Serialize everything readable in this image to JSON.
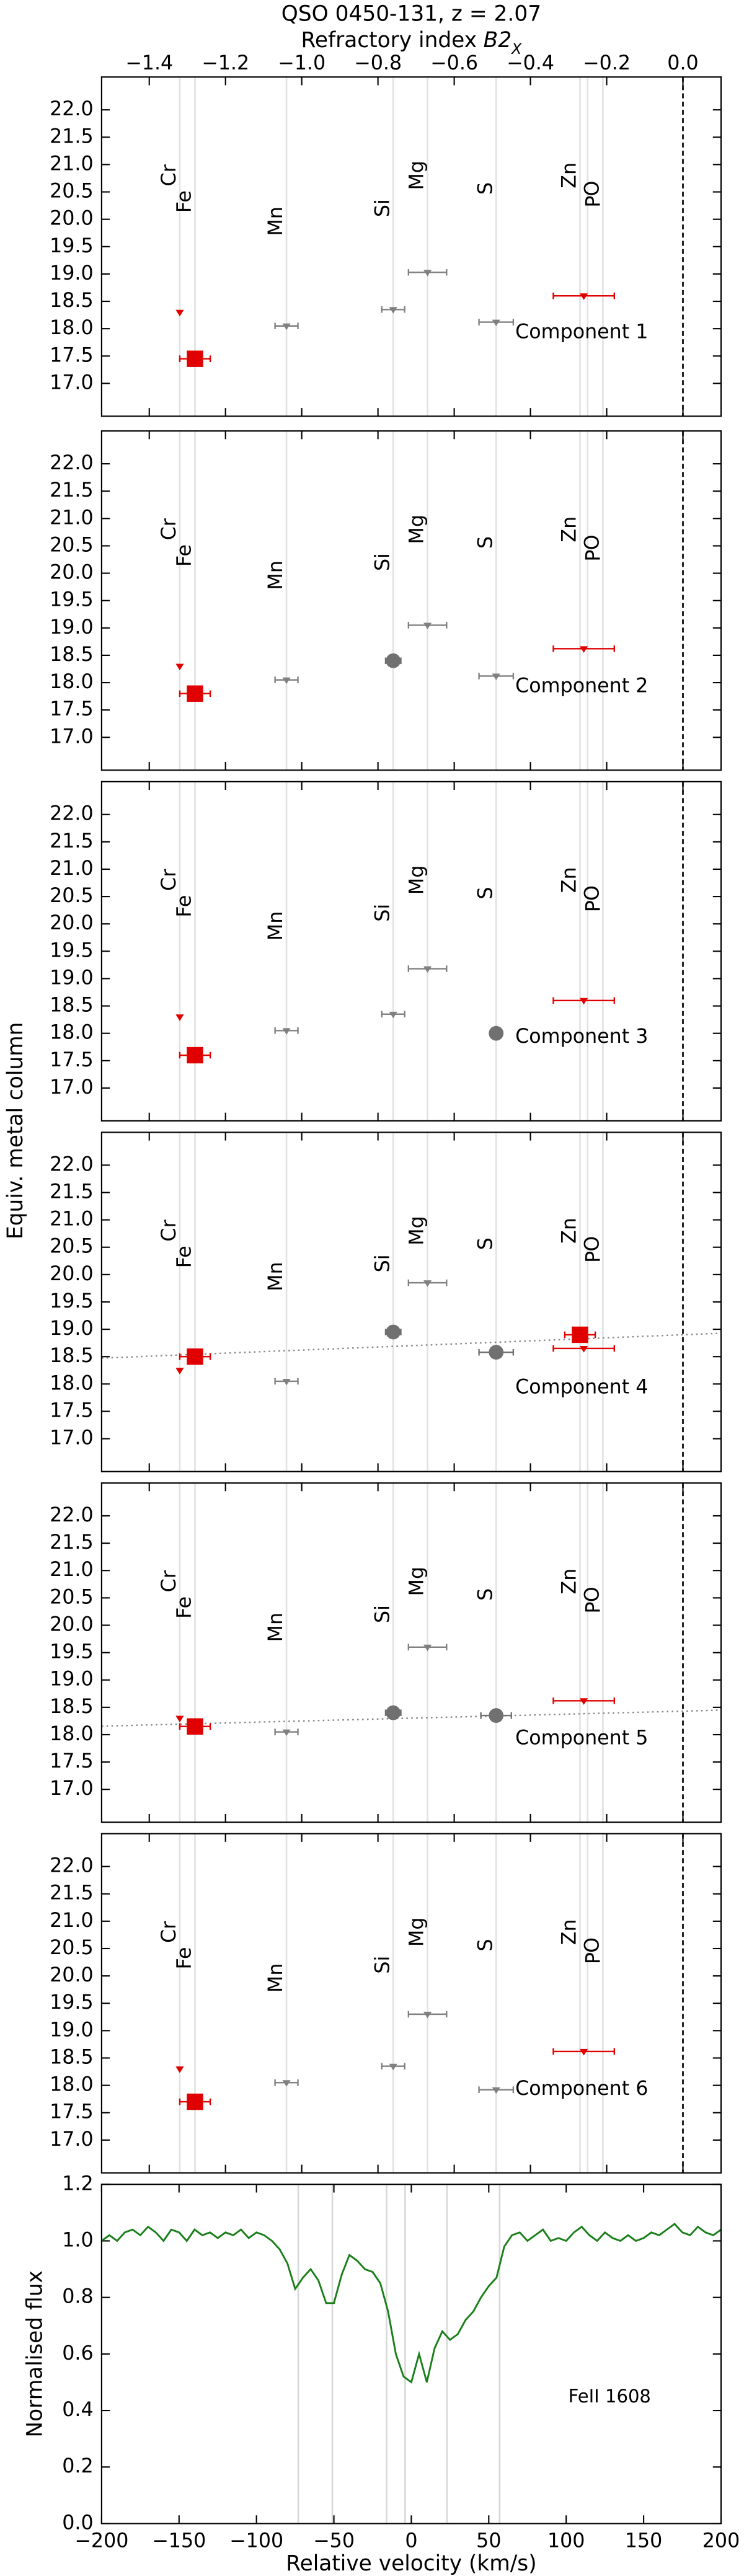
{
  "title": "QSO 0450-131, z = 2.07",
  "ylabel": "Equiv. metal column",
  "refractory_axis": {
    "label": "Refractory index",
    "symbol": "B2",
    "subscript": "X",
    "xlim": [
      -1.525,
      0.1
    ],
    "xticks": [
      {
        "value": -1.4,
        "label": "−1.4"
      },
      {
        "value": -1.2,
        "label": "−1.2"
      },
      {
        "value": -1.0,
        "label": "−1.0"
      },
      {
        "value": -0.8,
        "label": "−0.8"
      },
      {
        "value": -0.6,
        "label": "−0.6"
      },
      {
        "value": -0.4,
        "label": "−0.4"
      },
      {
        "value": -0.2,
        "label": "−0.2"
      },
      {
        "value": 0,
        "label": "0.0"
      }
    ],
    "refline": 0
  },
  "elements": {
    "labels": [
      "Cr",
      "Fe",
      "Mn",
      "Si",
      "Mg",
      "S",
      "Zn",
      "P",
      "O"
    ],
    "x": [
      -1.32,
      -1.28,
      -1.04,
      -0.76,
      -0.67,
      -0.49,
      -0.27,
      -0.25,
      -0.21
    ],
    "colors": [
      "#e00000",
      "#e00000",
      "#808080",
      "#808080",
      "#808080",
      "#808080",
      "#e00000",
      "#e00000",
      "#808080"
    ]
  },
  "chart_data": [
    {
      "type": "scatter",
      "label": "Component 1",
      "ylim": [
        16.4,
        22.6
      ],
      "yticks": [
        {
          "value": 17,
          "label": "17.0"
        },
        17.5,
        {
          "value": 18,
          "label": "18.0"
        },
        18.5,
        {
          "value": 19,
          "label": "19.0"
        },
        19.5,
        {
          "value": 20,
          "label": "20.0"
        },
        20.5,
        {
          "value": 21,
          "label": "21.0"
        },
        21.5,
        {
          "value": 22,
          "label": "22.0"
        }
      ],
      "points": {
        "x": [
          -1.32,
          -1.28,
          -1.04,
          -0.76,
          -0.67,
          -0.49,
          -0.26
        ],
        "values": [
          18.3,
          17.45,
          18.05,
          18.35,
          19.03,
          18.12,
          18.6
        ],
        "xerr": [
          0,
          0.04,
          0.03,
          0.03,
          0.05,
          0.045,
          0.08
        ],
        "markers": [
          "limit",
          "square",
          "limit",
          "limit",
          "limit",
          "limit",
          "limit"
        ],
        "colors": [
          "#e00000",
          "#e00000",
          "#808080",
          "#808080",
          "#808080",
          "#808080",
          "#e00000"
        ]
      }
    },
    {
      "type": "scatter",
      "label": "Component 2",
      "ylim": [
        16.4,
        22.6
      ],
      "yticks": [
        {
          "value": 17,
          "label": "17.0"
        },
        17.5,
        {
          "value": 18,
          "label": "18.0"
        },
        18.5,
        {
          "value": 19,
          "label": "19.0"
        },
        19.5,
        {
          "value": 20,
          "label": "20.0"
        },
        20.5,
        {
          "value": 21,
          "label": "21.0"
        },
        21.5,
        {
          "value": 22,
          "label": "22.0"
        }
      ],
      "points": {
        "x": [
          -1.32,
          -1.28,
          -1.04,
          -0.76,
          -0.67,
          -0.49,
          -0.26
        ],
        "values": [
          18.3,
          17.8,
          18.05,
          18.4,
          19.05,
          18.12,
          18.62
        ],
        "xerr": [
          0,
          0.04,
          0.03,
          0.02,
          0.05,
          0.045,
          0.08
        ],
        "markers": [
          "limit",
          "square",
          "limit",
          "circle",
          "limit",
          "limit",
          "limit"
        ],
        "colors": [
          "#e00000",
          "#e00000",
          "#808080",
          "#707070",
          "#808080",
          "#808080",
          "#e00000"
        ]
      }
    },
    {
      "type": "scatter",
      "label": "Component 3",
      "ylim": [
        16.4,
        22.6
      ],
      "yticks": [
        {
          "value": 17,
          "label": "17.0"
        },
        17.5,
        {
          "value": 18,
          "label": "18.0"
        },
        18.5,
        {
          "value": 19,
          "label": "19.0"
        },
        19.5,
        {
          "value": 20,
          "label": "20.0"
        },
        20.5,
        {
          "value": 21,
          "label": "21.0"
        },
        21.5,
        {
          "value": 22,
          "label": "22.0"
        }
      ],
      "points": {
        "x": [
          -1.32,
          -1.28,
          -1.04,
          -0.76,
          -0.67,
          -0.49,
          -0.26
        ],
        "values": [
          18.3,
          17.6,
          18.05,
          18.35,
          19.18,
          18.0,
          18.6
        ],
        "xerr": [
          0,
          0.04,
          0.03,
          0.03,
          0.05,
          0,
          0.08
        ],
        "markers": [
          "limit",
          "square",
          "limit",
          "limit",
          "limit",
          "circle",
          "limit"
        ],
        "colors": [
          "#e00000",
          "#e00000",
          "#808080",
          "#808080",
          "#808080",
          "#707070",
          "#e00000"
        ]
      }
    },
    {
      "type": "scatter",
      "label": "Component 4",
      "ylim": [
        16.4,
        22.6
      ],
      "yticks": [
        {
          "value": 17,
          "label": "17.0"
        },
        17.5,
        {
          "value": 18,
          "label": "18.0"
        },
        18.5,
        {
          "value": 19,
          "label": "19.0"
        },
        19.5,
        {
          "value": 20,
          "label": "20.0"
        },
        20.5,
        {
          "value": 21,
          "label": "21.0"
        },
        21.5,
        {
          "value": 22,
          "label": "22.0"
        }
      ],
      "points": {
        "x": [
          -1.32,
          -1.28,
          -1.04,
          -0.76,
          -0.67,
          -0.49,
          -0.26,
          -0.27
        ],
        "values": [
          18.25,
          18.5,
          18.05,
          18.95,
          19.85,
          18.58,
          18.65,
          18.9
        ],
        "xerr": [
          0,
          0.04,
          0.03,
          0.02,
          0.05,
          0.045,
          0.08,
          0.04
        ],
        "markers": [
          "limit",
          "square",
          "limit",
          "circle",
          "limit",
          "circle",
          "limit",
          "square"
        ],
        "colors": [
          "#e00000",
          "#e00000",
          "#808080",
          "#707070",
          "#808080",
          "#707070",
          "#e00000",
          "#e00000"
        ]
      },
      "fit": {
        "slope": 0.28,
        "intercept": 18.9
      }
    },
    {
      "type": "scatter",
      "label": "Component 5",
      "ylim": [
        16.4,
        22.6
      ],
      "yticks": [
        {
          "value": 17,
          "label": "17.0"
        },
        17.5,
        {
          "value": 18,
          "label": "18.0"
        },
        18.5,
        {
          "value": 19,
          "label": "19.0"
        },
        19.5,
        {
          "value": 20,
          "label": "20.0"
        },
        20.5,
        {
          "value": 21,
          "label": "21.0"
        },
        21.5,
        {
          "value": 22,
          "label": "22.0"
        }
      ],
      "points": {
        "x": [
          -1.32,
          -1.28,
          -1.04,
          -0.76,
          -0.67,
          -0.49,
          -0.26
        ],
        "values": [
          18.3,
          18.15,
          18.05,
          18.4,
          19.6,
          18.35,
          18.62
        ],
        "xerr": [
          0,
          0.04,
          0.03,
          0.02,
          0.05,
          0.04,
          0.08
        ],
        "markers": [
          "limit",
          "square",
          "limit",
          "circle",
          "limit",
          "circle",
          "limit"
        ],
        "colors": [
          "#e00000",
          "#e00000",
          "#808080",
          "#707070",
          "#808080",
          "#707070",
          "#e00000"
        ]
      },
      "fit": {
        "slope": 0.18,
        "intercept": 18.43
      }
    },
    {
      "type": "scatter",
      "label": "Component 6",
      "ylim": [
        16.4,
        22.6
      ],
      "yticks": [
        {
          "value": 17,
          "label": "17.0"
        },
        17.5,
        {
          "value": 18,
          "label": "18.0"
        },
        18.5,
        {
          "value": 19,
          "label": "19.0"
        },
        19.5,
        {
          "value": 20,
          "label": "20.0"
        },
        20.5,
        {
          "value": 21,
          "label": "21.0"
        },
        21.5,
        {
          "value": 22,
          "label": "22.0"
        }
      ],
      "points": {
        "x": [
          -1.32,
          -1.28,
          -1.04,
          -0.76,
          -0.67,
          -0.49,
          -0.26
        ],
        "values": [
          18.3,
          17.7,
          18.05,
          18.35,
          19.3,
          17.92,
          18.62
        ],
        "xerr": [
          0,
          0.04,
          0.03,
          0.03,
          0.05,
          0.045,
          0.08
        ],
        "markers": [
          "limit",
          "square",
          "limit",
          "limit",
          "limit",
          "limit",
          "limit"
        ],
        "colors": [
          "#e00000",
          "#e00000",
          "#808080",
          "#808080",
          "#808080",
          "#808080",
          "#e00000"
        ]
      }
    },
    {
      "type": "line",
      "xlabel": "Relative velocity (km/s)",
      "ylabel": "Normalised flux",
      "annotation": "FeII 1608",
      "color": "#1a7f1a",
      "xlim": [
        -200,
        200
      ],
      "ylim": [
        0,
        1.2
      ],
      "xticks": [
        {
          "value": -200,
          "label": "−200"
        },
        {
          "value": -150,
          "label": "−150"
        },
        {
          "value": -100,
          "label": "−100"
        },
        {
          "value": -50,
          "label": "−50"
        },
        0,
        50,
        100,
        150,
        200
      ],
      "yticks": [
        {
          "value": 0,
          "label": "0.0"
        },
        0.2,
        0.4,
        0.6,
        0.8,
        {
          "value": 1,
          "label": "1.0"
        },
        1.2
      ],
      "vlines": [
        -73,
        -51,
        -16,
        -4,
        23,
        57
      ],
      "x": [
        -200,
        -195,
        -190,
        -185,
        -180,
        -175,
        -170,
        -165,
        -160,
        -155,
        -150,
        -145,
        -140,
        -135,
        -130,
        -125,
        -120,
        -115,
        -110,
        -105,
        -100,
        -95,
        -90,
        -85,
        -80,
        -75,
        -70,
        -65,
        -60,
        -55,
        -50,
        -45,
        -40,
        -35,
        -30,
        -25,
        -20,
        -15,
        -10,
        -5,
        0,
        5,
        10,
        15,
        20,
        25,
        30,
        35,
        40,
        45,
        50,
        55,
        60,
        65,
        70,
        75,
        80,
        85,
        90,
        95,
        100,
        105,
        110,
        115,
        120,
        125,
        130,
        135,
        140,
        145,
        150,
        155,
        160,
        165,
        170,
        175,
        180,
        185,
        190,
        195,
        200
      ],
      "values": [
        1.0,
        1.02,
        1.0,
        1.03,
        1.04,
        1.02,
        1.05,
        1.03,
        1.0,
        1.04,
        1.03,
        1.0,
        1.04,
        1.02,
        1.03,
        1.01,
        1.03,
        1.02,
        1.04,
        1.01,
        1.03,
        1.02,
        1.0,
        0.97,
        0.92,
        0.83,
        0.87,
        0.9,
        0.86,
        0.78,
        0.78,
        0.88,
        0.95,
        0.93,
        0.9,
        0.89,
        0.85,
        0.75,
        0.6,
        0.52,
        0.5,
        0.6,
        0.5,
        0.62,
        0.68,
        0.65,
        0.67,
        0.72,
        0.75,
        0.8,
        0.84,
        0.87,
        0.98,
        1.02,
        1.03,
        1.0,
        1.02,
        1.04,
        1.0,
        1.01,
        1.0,
        1.03,
        1.05,
        1.02,
        1.0,
        1.03,
        1.01,
        1.0,
        1.02,
        1.0,
        1.01,
        1.03,
        1.02,
        1.04,
        1.06,
        1.03,
        1.02,
        1.05,
        1.03,
        1.02,
        1.04
      ]
    }
  ]
}
